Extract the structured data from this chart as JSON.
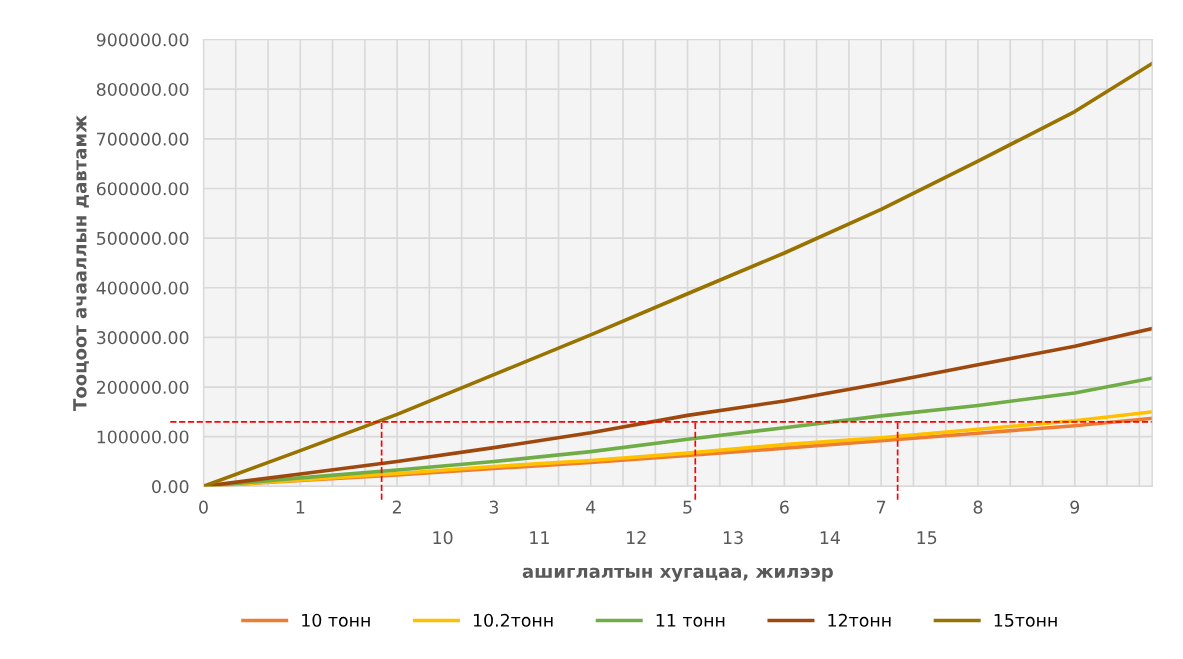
{
  "chart_data": {
    "type": "line",
    "xlabel": "ашиглалтын хугацаа, жилээр",
    "ylabel": "Тооцоот ачааллын давтамж",
    "xlim": [
      0,
      9.8
    ],
    "ylim": [
      0,
      900000
    ],
    "xticks": [
      0,
      {
        "value": 0.333,
        "label": null
      },
      {
        "value": 0.667,
        "label": null
      },
      1,
      {
        "value": 1.333,
        "label": null
      },
      {
        "value": 1.667,
        "label": null
      },
      2,
      {
        "value": 2.333,
        "label": null
      },
      {
        "value": 2.667,
        "label": null
      },
      3,
      {
        "value": 3.333,
        "label": null
      },
      {
        "value": 3.667,
        "label": null
      },
      4,
      {
        "value": 4.333,
        "label": null
      },
      {
        "value": 4.667,
        "label": null
      },
      5,
      {
        "value": 5.333,
        "label": null
      },
      {
        "value": 5.667,
        "label": null
      },
      6,
      {
        "value": 6.333,
        "label": null
      },
      {
        "value": 6.667,
        "label": null
      },
      7,
      {
        "value": 7.333,
        "label": null
      },
      {
        "value": 7.667,
        "label": null
      },
      8,
      {
        "value": 8.333,
        "label": null
      },
      {
        "value": 8.667,
        "label": null
      },
      9,
      {
        "value": 9.333,
        "label": null
      },
      {
        "value": 9.667,
        "label": null
      }
    ],
    "yticks": [
      {
        "value": 0,
        "label": "0.00"
      },
      {
        "value": 100000,
        "label": "100000.00"
      },
      {
        "value": 200000,
        "label": "200000.00"
      },
      {
        "value": 300000,
        "label": "300000.00"
      },
      {
        "value": 400000,
        "label": "400000.00"
      },
      {
        "value": 500000,
        "label": "500000.00"
      },
      {
        "value": 600000,
        "label": "600000.00"
      },
      {
        "value": 700000,
        "label": "700000.00"
      },
      {
        "value": 800000,
        "label": "800000.00"
      },
      {
        "value": 900000,
        "label": "900000.00"
      }
    ],
    "x2lim": [
      7.53,
      17.33
    ],
    "x2ticks": [
      10,
      11,
      12,
      13,
      14,
      15
    ],
    "x": [
      0,
      1,
      2,
      3,
      4,
      5,
      6,
      7,
      8,
      9,
      9.8
    ],
    "series": [
      {
        "name": "10 тонн",
        "color": "#ed7d31",
        "values": [
          0,
          12000,
          23000,
          36000,
          48000,
          62000,
          77000,
          92000,
          107000,
          122000,
          137000
        ]
      },
      {
        "name": "10.2тонн",
        "color": "#ffc000",
        "values": [
          0,
          13000,
          26000,
          40000,
          52000,
          67000,
          84000,
          98000,
          115000,
          132000,
          150000
        ]
      },
      {
        "name": "11 тонн",
        "color": "#70ad47",
        "values": [
          0,
          17000,
          33000,
          50000,
          70000,
          95000,
          118000,
          142000,
          163000,
          188000,
          218000
        ]
      },
      {
        "name": "12тонн",
        "color": "#9e480e",
        "values": [
          0,
          25000,
          50000,
          78000,
          108000,
          143000,
          172000,
          207000,
          245000,
          282000,
          318000
        ]
      },
      {
        "name": "15тонн",
        "color": "#997300",
        "values": [
          0,
          72000,
          145000,
          225000,
          305000,
          388000,
          470000,
          558000,
          655000,
          755000,
          852000
        ]
      }
    ],
    "ref_lines": [
      {
        "axis": "y",
        "value": 130000,
        "color": "#ff0000",
        "line_style": "dashed"
      },
      {
        "axis": "x",
        "value": 1.84,
        "color": "#ff0000",
        "line_style": "dashed"
      },
      {
        "axis": "x",
        "value": 5.08,
        "color": "#ff0000",
        "line_style": "dashed"
      },
      {
        "axis": "x",
        "value": 7.17,
        "color": "#ff0000",
        "line_style": "dashed"
      }
    ],
    "grid": true,
    "legend": "bottom",
    "line_style": "solid"
  }
}
